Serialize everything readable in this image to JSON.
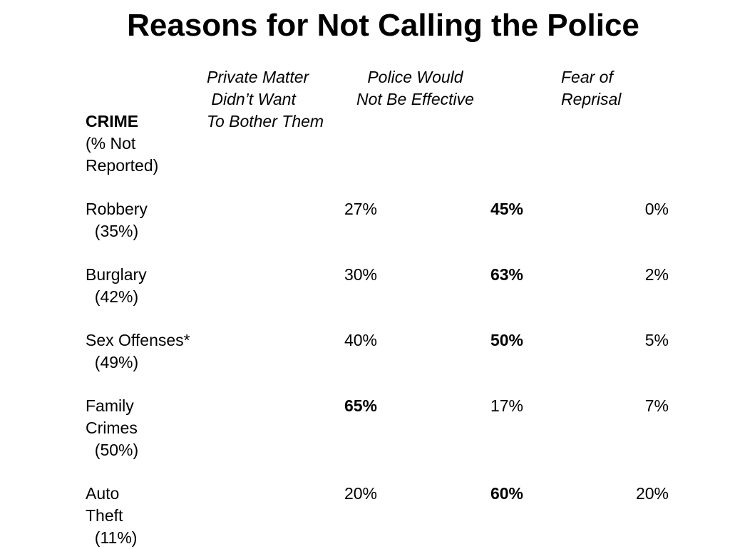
{
  "title": "Reasons for Not Calling the Police",
  "headers": {
    "crime": "CRIME",
    "crime_sub": "(% Not\nReported)",
    "col1": "Private Matter\n Didn’t Want\nTo Bother Them",
    "col2": "Police Would\nNot Be Effective",
    "col3": "Fear of\nReprisal"
  },
  "rows": [
    {
      "name": "Robbery\n  (35%)",
      "private": "27%",
      "police": "45%",
      "fear": "0%",
      "bold": "police"
    },
    {
      "name": "Burglary\n  (42%)",
      "private": "30%",
      "police": "63%",
      "fear": "2%",
      "bold": "police"
    },
    {
      "name": "Sex Offenses*\n  (49%)",
      "private": "40%",
      "police": "50%",
      "fear": "5%",
      "bold": "police"
    },
    {
      "name": "Family\nCrimes\n  (50%)",
      "private": "65%",
      "police": "17%",
      "fear": "7%",
      "bold": "private"
    },
    {
      "name": "Auto\nTheft\n  (11%)",
      "private": "20%",
      "police": "60%",
      "fear": "20%",
      "bold": "police"
    }
  ]
}
